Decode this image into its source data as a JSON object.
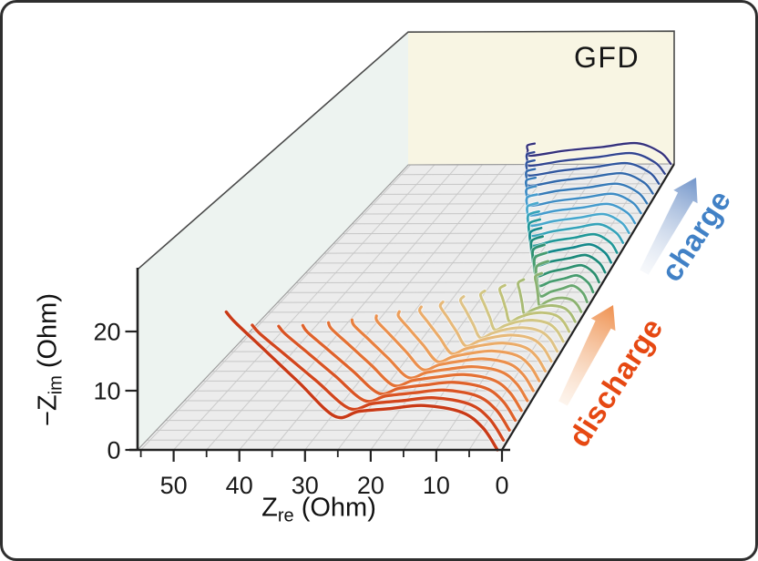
{
  "figure": {
    "panel_label": "GFD",
    "background": "#ffffff",
    "border_color": "#2e2e2e"
  },
  "chart_data": {
    "type": "line3d-waterfall-nyquist",
    "title": "GFD",
    "description": "3D stacked Nyquist impedance spectra (EIS) recorded sequentially during discharge (front, warm colors) and charge (back, cool colors) of sample GFD.",
    "x_axis": {
      "name": "Z",
      "sub": "re",
      "unit": " (Ohm)",
      "min": 0,
      "max": 55.5,
      "reversed": true,
      "major_ticks": [
        50,
        40,
        30,
        20,
        10,
        0
      ],
      "minor_ticks": [
        55,
        45,
        35,
        25,
        15,
        5
      ]
    },
    "z_axis": {
      "name": "−Z",
      "sub": "im",
      "unit": " (Ohm)",
      "min": 0,
      "max": 30.5,
      "major_ticks": [
        0,
        10,
        20
      ]
    },
    "depth_axis": {
      "n_curves": 30,
      "front_phase": "discharge",
      "back_phase": "charge",
      "grid_lines_every_curve": true,
      "x_grid_step_ohm": 5
    },
    "walls": {
      "left_wall": "#edf3f0",
      "back_wall": "#f8f5e3",
      "floor": "#ececec",
      "grid": "#c6c6c6",
      "edge_dark": "#222222",
      "edge_light": "#4a4a4a",
      "junction": "#9a9a9a"
    },
    "annotations": [
      {
        "text": "discharge",
        "color": "#e64812",
        "arrow_tail_color": "#f6d2b4",
        "arrow_head_color": "#ef9150",
        "angle_deg": -57
      },
      {
        "text": "charge",
        "color": "#4181c6",
        "arrow_tail_color": "#dde4ef",
        "arrow_head_color": "#7295ca",
        "angle_deg": -57
      }
    ],
    "series_note": "Each spectrum: high-frequency start (start_ohm), depressed semicircle of peak height peak_im_ohm, local minimum dip_im_ohm at dip_at_ohm, then diffusion tail ending at tail_end [Zre, -Zim] with top hooking left by hook_ohm. Units: Ohm. Order: index 0 = frontmost.",
    "series": [
      {
        "i": 0,
        "phase": "discharge",
        "color": "#c93a17",
        "start_ohm": 0.7,
        "peak_im_ohm": 7.5,
        "dip_im_ohm": 5.7,
        "dip_at_ohm": 25.5,
        "tail_end": [
          42.3,
          23.3
        ],
        "hook_ohm": 0.3
      },
      {
        "i": 1,
        "phase": "discharge",
        "color": "#d2461d",
        "start_ohm": 0.7,
        "peak_im_ohm": 7.2,
        "dip_im_ohm": 5.4,
        "dip_at_ohm": 24.4,
        "tail_end": [
          39.7,
          19.6
        ],
        "hook_ohm": 0.4
      },
      {
        "i": 2,
        "phase": "discharge",
        "color": "#d95424",
        "start_ohm": 0.7,
        "peak_im_ohm": 6.9,
        "dip_im_ohm": 5.1,
        "dip_at_ohm": 23.2,
        "tail_end": [
          36.9,
          17.9
        ],
        "hook_ohm": 0.4
      },
      {
        "i": 3,
        "phase": "discharge",
        "color": "#df622b",
        "start_ohm": 0.7,
        "peak_im_ohm": 6.6,
        "dip_im_ohm": 4.7,
        "dip_at_ohm": 22.1,
        "tail_end": [
          34.5,
          16.5
        ],
        "hook_ohm": 0.5
      },
      {
        "i": 4,
        "phase": "discharge",
        "color": "#e47134",
        "start_ohm": 0.7,
        "peak_im_ohm": 6.3,
        "dip_im_ohm": 4.4,
        "dip_at_ohm": 20.9,
        "tail_end": [
          31.8,
          15.4
        ],
        "hook_ohm": 0.6
      },
      {
        "i": 5,
        "phase": "discharge",
        "color": "#e8803f",
        "start_ohm": 0.7,
        "peak_im_ohm": 6.0,
        "dip_im_ohm": 4.1,
        "dip_at_ohm": 19.7,
        "tail_end": [
          29.3,
          14.3
        ],
        "hook_ohm": 0.6
      },
      {
        "i": 6,
        "phase": "discharge",
        "color": "#eb8f4c",
        "start_ohm": 0.7,
        "peak_im_ohm": 5.7,
        "dip_im_ohm": 3.8,
        "dip_at_ohm": 18.5,
        "tail_end": [
          26.7,
          13.4
        ],
        "hook_ohm": 0.7
      },
      {
        "i": 7,
        "phase": "discharge",
        "color": "#ec9e5a",
        "start_ohm": 0.7,
        "peak_im_ohm": 5.4,
        "dip_im_ohm": 3.5,
        "dip_at_ohm": 17.3,
        "tail_end": [
          24.3,
          12.5
        ],
        "hook_ohm": 0.8
      },
      {
        "i": 8,
        "phase": "discharge",
        "color": "#ebac69",
        "start_ohm": 0.7,
        "peak_im_ohm": 5.1,
        "dip_im_ohm": 3.2,
        "dip_at_ohm": 16.1,
        "tail_end": [
          21.9,
          11.7
        ],
        "hook_ohm": 0.8
      },
      {
        "i": 9,
        "phase": "discharge",
        "color": "#e7b979",
        "start_ohm": 0.7,
        "peak_im_ohm": 4.8,
        "dip_im_ohm": 2.8,
        "dip_at_ohm": 14.9,
        "tail_end": [
          19.6,
          10.9
        ],
        "hook_ohm": 0.9
      },
      {
        "i": 10,
        "phase": "discharge",
        "color": "#dfc386",
        "start_ohm": 0.7,
        "peak_im_ohm": 4.4,
        "dip_im_ohm": 2.5,
        "dip_at_ohm": 13.6,
        "tail_end": [
          17.3,
          10.2
        ],
        "hook_ohm": 0.9
      },
      {
        "i": 11,
        "phase": "discharge",
        "color": "#d2c683",
        "start_ohm": 0.7,
        "peak_im_ohm": 4.0,
        "dip_im_ohm": 2.2,
        "dip_at_ohm": 12.3,
        "tail_end": [
          15.0,
          9.5
        ],
        "hook_ohm": 1.0
      },
      {
        "i": 12,
        "phase": "discharge",
        "color": "#c0c279",
        "start_ohm": 0.7,
        "peak_im_ohm": 3.6,
        "dip_im_ohm": 1.9,
        "dip_at_ohm": 10.9,
        "tail_end": [
          12.8,
          8.8
        ],
        "hook_ohm": 1.1
      },
      {
        "i": 13,
        "phase": "discharge",
        "color": "#a8bb74",
        "start_ohm": 0.7,
        "peak_im_ohm": 3.1,
        "dip_im_ohm": 1.5,
        "dip_at_ohm": 9.5,
        "tail_end": [
          10.7,
          8.1
        ],
        "hook_ohm": 1.1
      },
      {
        "i": 14,
        "phase": "discharge",
        "color": "#8cb271",
        "start_ohm": 0.7,
        "peak_im_ohm": 2.7,
        "dip_im_ohm": 1.2,
        "dip_at_ohm": 8.0,
        "tail_end": [
          8.8,
          7.5
        ],
        "hook_ohm": 1.2
      },
      {
        "i": 15,
        "phase": "charge",
        "color": "#68a76f",
        "start_ohm": 0.7,
        "peak_im_ohm": 3.2,
        "dip_im_ohm": 1.2,
        "dip_at_ohm": 9.0,
        "tail_end": [
          9.6,
          8.0
        ],
        "hook_ohm": 2.0
      },
      {
        "i": 16,
        "phase": "charge",
        "color": "#479c6f",
        "start_ohm": 0.7,
        "peak_im_ohm": 3.3,
        "dip_im_ohm": 1.3,
        "dip_at_ohm": 10.5,
        "tail_end": [
          11.1,
          7.8
        ],
        "hook_ohm": 2.0
      },
      {
        "i": 17,
        "phase": "charge",
        "color": "#2e9070",
        "start_ohm": 0.7,
        "peak_im_ohm": 3.4,
        "dip_im_ohm": 1.3,
        "dip_at_ohm": 12.0,
        "tail_end": [
          12.6,
          7.5
        ],
        "hook_ohm": 2.0
      },
      {
        "i": 18,
        "phase": "charge",
        "color": "#1d8a7a",
        "start_ohm": 0.7,
        "peak_im_ohm": 3.5,
        "dip_im_ohm": 1.4,
        "dip_at_ohm": 13.5,
        "tail_end": [
          14.1,
          7.3
        ],
        "hook_ohm": 2.0
      },
      {
        "i": 19,
        "phase": "charge",
        "color": "#15898b",
        "start_ohm": 0.7,
        "peak_im_ohm": 3.7,
        "dip_im_ohm": 1.4,
        "dip_at_ohm": 15.0,
        "tail_end": [
          15.6,
          7.1
        ],
        "hook_ohm": 2.0
      },
      {
        "i": 20,
        "phase": "charge",
        "color": "#219898",
        "start_ohm": 0.7,
        "peak_im_ohm": 3.8,
        "dip_im_ohm": 1.5,
        "dip_at_ohm": 16.5,
        "tail_end": [
          17.1,
          6.9
        ],
        "hook_ohm": 2.0
      },
      {
        "i": 21,
        "phase": "charge",
        "color": "#35a3b9",
        "start_ohm": 0.7,
        "peak_im_ohm": 3.9,
        "dip_im_ohm": 1.5,
        "dip_at_ohm": 18.0,
        "tail_end": [
          18.6,
          6.6
        ],
        "hook_ohm": 2.0
      },
      {
        "i": 22,
        "phase": "charge",
        "color": "#48a8cd",
        "start_ohm": 0.7,
        "peak_im_ohm": 4.0,
        "dip_im_ohm": 1.6,
        "dip_at_ohm": 19.5,
        "tail_end": [
          20.1,
          6.4
        ],
        "hook_ohm": 1.9
      },
      {
        "i": 23,
        "phase": "charge",
        "color": "#449bcd",
        "start_ohm": 0.7,
        "peak_im_ohm": 4.1,
        "dip_im_ohm": 1.7,
        "dip_at_ohm": 21.0,
        "tail_end": [
          21.6,
          6.2
        ],
        "hook_ohm": 1.9
      },
      {
        "i": 24,
        "phase": "charge",
        "color": "#3e8cc4",
        "start_ohm": 0.7,
        "peak_im_ohm": 4.2,
        "dip_im_ohm": 1.7,
        "dip_at_ohm": 22.5,
        "tail_end": [
          23.1,
          5.9
        ],
        "hook_ohm": 1.8
      },
      {
        "i": 25,
        "phase": "charge",
        "color": "#377bb8",
        "start_ohm": 0.7,
        "peak_im_ohm": 4.3,
        "dip_im_ohm": 1.8,
        "dip_at_ohm": 24.0,
        "tail_end": [
          24.6,
          5.7
        ],
        "hook_ohm": 1.8
      },
      {
        "i": 26,
        "phase": "charge",
        "color": "#3269ab",
        "start_ohm": 0.7,
        "peak_im_ohm": 4.5,
        "dip_im_ohm": 1.8,
        "dip_at_ohm": 25.5,
        "tail_end": [
          26.1,
          5.5
        ],
        "hook_ohm": 1.7
      },
      {
        "i": 27,
        "phase": "charge",
        "color": "#30569e",
        "start_ohm": 0.7,
        "peak_im_ohm": 4.6,
        "dip_im_ohm": 1.9,
        "dip_at_ohm": 27.0,
        "tail_end": [
          27.6,
          5.3
        ],
        "hook_ohm": 1.6
      },
      {
        "i": 28,
        "phase": "charge",
        "color": "#324590",
        "start_ohm": 0.7,
        "peak_im_ohm": 4.7,
        "dip_im_ohm": 1.9,
        "dip_at_ohm": 28.5,
        "tail_end": [
          29.1,
          5.0
        ],
        "hook_ohm": 1.5
      },
      {
        "i": 29,
        "phase": "charge",
        "color": "#35317c",
        "start_ohm": 0.7,
        "peak_im_ohm": 4.8,
        "dip_im_ohm": 2.0,
        "dip_at_ohm": 30.0,
        "tail_end": [
          30.6,
          4.8
        ],
        "hook_ohm": 1.5
      }
    ]
  }
}
